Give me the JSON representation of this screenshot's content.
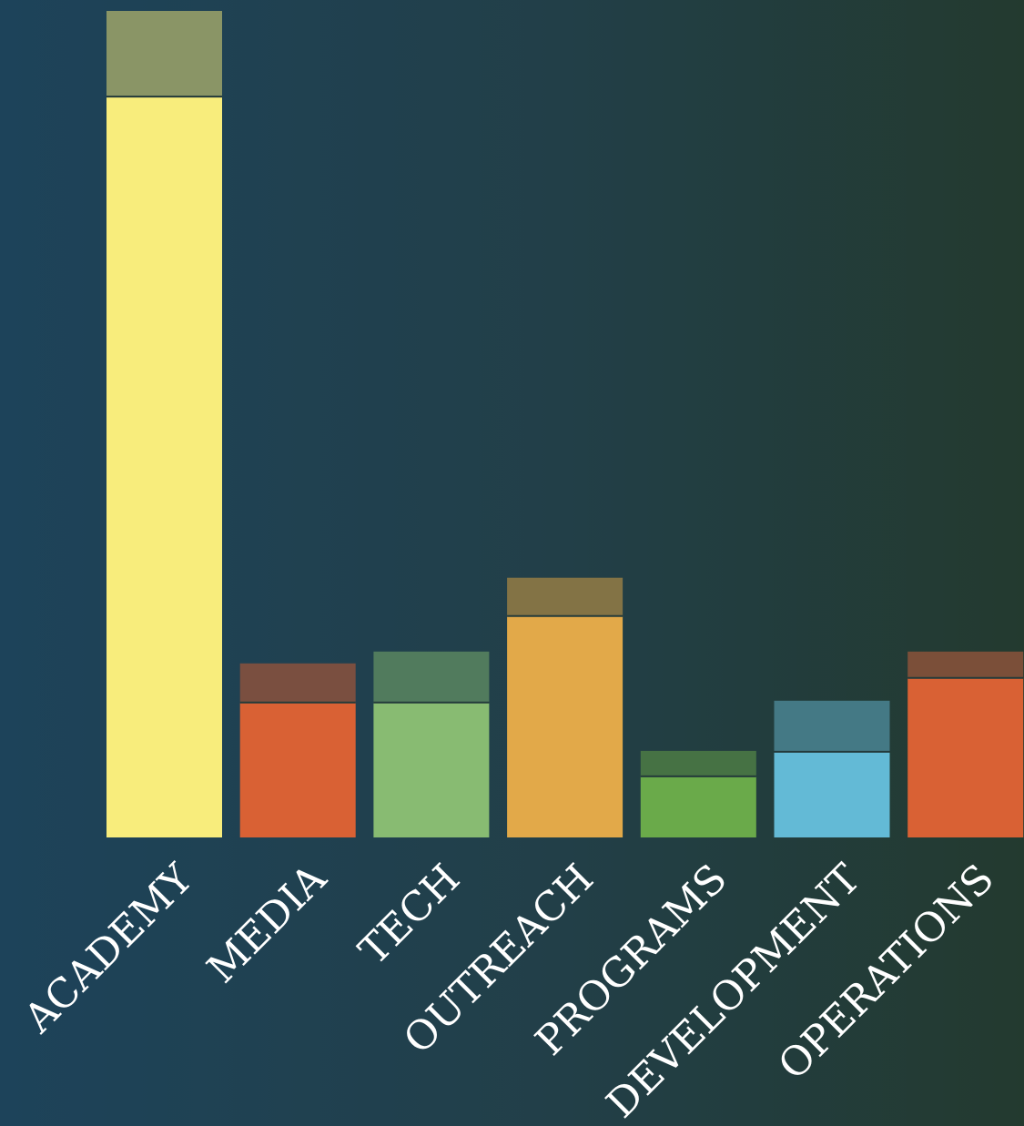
{
  "chart_data": {
    "type": "bar",
    "stacked": true,
    "categories": [
      "ACADEMY",
      "MEDIA",
      "TECH",
      "OUTREACH",
      "PROGRAMS",
      "DEVELOPMENT",
      "OPERATIONS"
    ],
    "series": [
      {
        "values": [
          813,
          148,
          148,
          243,
          67,
          94,
          175
        ],
        "colors": [
          "#f8ed7c",
          "#d96134",
          "#88bb72",
          "#e2a949",
          "#6aaa4a",
          "#63bad6",
          "#d96134"
        ]
      },
      {
        "values": [
          94,
          43,
          56,
          42,
          28,
          56,
          29
        ],
        "colors": [
          "#8a9566",
          "#7a4f40",
          "#517b5d",
          "#837345",
          "#467244",
          "#447985",
          "#7b4f39"
        ]
      }
    ],
    "ylim": [
      0,
      907
    ],
    "grid": false,
    "legend": "none",
    "xlabel": "",
    "ylabel": ""
  }
}
